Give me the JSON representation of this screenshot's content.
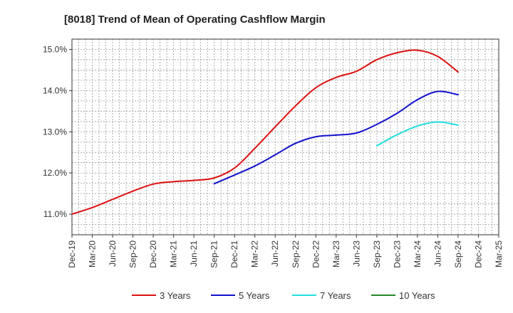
{
  "chart_data": {
    "type": "line",
    "title": "[8018]  Trend of Mean of Operating Cashflow Margin",
    "xlabel": "",
    "ylabel": "",
    "x_tick_labels": [
      "Dec-19",
      "Mar-20",
      "Jun-20",
      "Sep-20",
      "Dec-20",
      "Mar-21",
      "Jun-21",
      "Sep-21",
      "Dec-21",
      "Mar-22",
      "Jun-22",
      "Sep-22",
      "Dec-22",
      "Mar-23",
      "Jun-23",
      "Sep-23",
      "Dec-23",
      "Mar-24",
      "Jun-24",
      "Sep-24",
      "Dec-24",
      "Mar-25"
    ],
    "y_tick_labels": [
      "11.0%",
      "12.0%",
      "13.0%",
      "14.0%",
      "15.0%"
    ],
    "y_ticks": [
      11.0,
      12.0,
      13.0,
      14.0,
      15.0
    ],
    "ylim": [
      10.5,
      15.25
    ],
    "grid": true,
    "legend_position": "bottom",
    "series": [
      {
        "name": "3 Years",
        "color": "#dd1111",
        "x": [
          "Dec-19",
          "Mar-20",
          "Jun-20",
          "Sep-20",
          "Dec-20",
          "Mar-21",
          "Jun-21",
          "Sep-21",
          "Dec-21",
          "Mar-22",
          "Jun-22",
          "Sep-22",
          "Dec-22",
          "Mar-23",
          "Jun-23",
          "Sep-23",
          "Dec-23",
          "Mar-24",
          "Jun-24",
          "Sep-24"
        ],
        "values": [
          11.0,
          11.16,
          11.36,
          11.56,
          11.73,
          11.79,
          11.82,
          11.88,
          12.12,
          12.6,
          13.12,
          13.63,
          14.07,
          14.32,
          14.47,
          14.75,
          14.92,
          14.98,
          14.83,
          14.45
        ]
      },
      {
        "name": "5 Years",
        "color": "#1111cc",
        "x": [
          "Sep-21",
          "Dec-21",
          "Mar-22",
          "Jun-22",
          "Sep-22",
          "Dec-22",
          "Mar-23",
          "Jun-23",
          "Sep-23",
          "Dec-23",
          "Mar-24",
          "Jun-24",
          "Sep-24"
        ],
        "values": [
          11.74,
          11.95,
          12.17,
          12.44,
          12.72,
          12.88,
          12.92,
          12.97,
          13.18,
          13.45,
          13.78,
          13.98,
          13.9
        ]
      },
      {
        "name": "7 Years",
        "color": "#22dddd",
        "x": [
          "Sep-23",
          "Dec-23",
          "Mar-24",
          "Jun-24",
          "Sep-24"
        ],
        "values": [
          12.66,
          12.93,
          13.14,
          13.24,
          13.16
        ]
      },
      {
        "name": "10 Years",
        "color": "#228822",
        "x": [],
        "values": []
      }
    ]
  }
}
